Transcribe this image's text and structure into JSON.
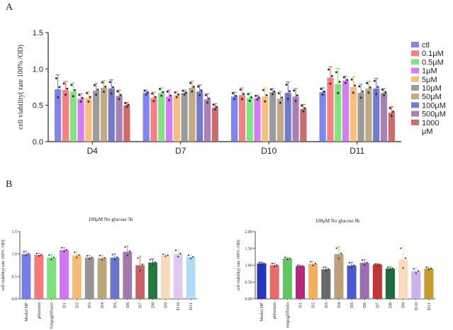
{
  "chart_data": [
    {
      "panel": "A",
      "type": "bar",
      "title": "",
      "ylabel": "cell viability( rate 100% /OD)",
      "xlabel": "",
      "ylim": [
        0,
        1.5
      ],
      "yticks": [
        "0.0",
        "0.5",
        "1.0",
        "1.5"
      ],
      "categories": [
        "D4",
        "D7",
        "D10",
        "D11"
      ],
      "series": [
        {
          "name": "ctl",
          "color": "#6a6fe8",
          "values": [
            0.72,
            0.67,
            0.62,
            0.68
          ],
          "errors": [
            0.2,
            0.04,
            0.06,
            0.06
          ]
        },
        {
          "name": "0.1μM",
          "color": "#f26b6b",
          "values": [
            0.71,
            0.6,
            0.64,
            0.88
          ],
          "errors": [
            0.12,
            0.08,
            0.1,
            0.15
          ]
        },
        {
          "name": "0.5μM",
          "color": "#6fdc6f",
          "values": [
            0.69,
            0.67,
            0.6,
            0.79
          ],
          "errors": [
            0.12,
            0.07,
            0.07,
            0.22
          ]
        },
        {
          "name": "1μM",
          "color": "#cc66ee",
          "values": [
            0.59,
            0.62,
            0.6,
            0.84
          ],
          "errors": [
            0.07,
            0.09,
            0.04,
            0.06
          ]
        },
        {
          "name": "5μM",
          "color": "#f7b36a",
          "values": [
            0.6,
            0.64,
            0.62,
            0.75
          ],
          "errors": [
            0.09,
            0.05,
            0.12,
            0.14
          ]
        },
        {
          "name": "10μM",
          "color": "#8a8a8a",
          "values": [
            0.7,
            0.67,
            0.68,
            0.67
          ],
          "errors": [
            0.1,
            0.04,
            0.05,
            0.12
          ]
        },
        {
          "name": "50μM",
          "color": "#b59b6e",
          "values": [
            0.74,
            0.74,
            0.59,
            0.73
          ],
          "errors": [
            0.1,
            0.09,
            0.1,
            0.1
          ]
        },
        {
          "name": "100μM",
          "color": "#5c64c4",
          "values": [
            0.73,
            0.69,
            0.67,
            0.73
          ],
          "errors": [
            0.12,
            0.09,
            0.15,
            0.14
          ]
        },
        {
          "name": "500μM",
          "color": "#9a6aa6",
          "values": [
            0.63,
            0.58,
            0.62,
            0.67
          ],
          "errors": [
            0.08,
            0.08,
            0.11,
            0.06
          ]
        },
        {
          "name": "1000μM",
          "color": "#c45252",
          "values": [
            0.5,
            0.47,
            0.45,
            0.4
          ],
          "errors": [
            0.04,
            0.05,
            0.06,
            0.08
          ]
        }
      ]
    },
    {
      "panel": "B-left",
      "type": "bar",
      "title": "100μM No glucose 3h",
      "ylabel": "cell viability( rate 100% /OD)",
      "xlabel": "",
      "ylim": [
        0,
        1.5
      ],
      "yticks": [
        "0.0",
        "0.5",
        "1.0",
        "1.5"
      ],
      "categories": [
        "Model HF",
        "phlorizin",
        "Empagliflozin",
        "D1",
        "D2",
        "D3",
        "D4",
        "D5",
        "D6",
        "D7",
        "D8",
        "D9",
        "D10",
        "D11"
      ],
      "values": [
        1.0,
        0.98,
        0.92,
        1.09,
        0.97,
        0.92,
        0.91,
        0.92,
        1.05,
        0.75,
        0.81,
        0.97,
        1.0,
        0.93
      ],
      "errors": [
        0.06,
        0.04,
        0.07,
        0.06,
        0.08,
        0.05,
        0.07,
        0.08,
        0.13,
        0.2,
        0.08,
        0.03,
        0.1,
        0.05
      ],
      "colors": [
        "#6a6fe8",
        "#f26b6b",
        "#6fdc6f",
        "#cc66ee",
        "#f7b36a",
        "#8a8a8a",
        "#b59b6e",
        "#5c64c4",
        "#9a6aa6",
        "#c45252",
        "#0a6b2a",
        "#f7d7b4",
        "#d9c4ec",
        "#a9d6f5"
      ]
    },
    {
      "panel": "B-right",
      "type": "bar",
      "title": "100μM No glucose 8h",
      "ylabel": "cell viability( rate 100% /OD)",
      "xlabel": "",
      "ylim": [
        0,
        2.0
      ],
      "yticks": [
        "0.00",
        "0.50",
        "1.00",
        "1.50",
        "2.00"
      ],
      "categories": [
        "Model HF",
        "phlorizin",
        "empagliflozin",
        "D1",
        "D2",
        "D3",
        "D4",
        "D5",
        "D6",
        "D7",
        "D8",
        "D9",
        "D10",
        "D11"
      ],
      "values": [
        1.05,
        1.0,
        1.2,
        0.97,
        1.04,
        0.88,
        1.33,
        0.99,
        1.07,
        1.02,
        0.9,
        1.17,
        0.82,
        0.9
      ],
      "errors": [
        0.04,
        0.06,
        0.04,
        0.03,
        0.08,
        0.07,
        0.22,
        0.1,
        0.1,
        0.02,
        0.05,
        0.42,
        0.09,
        0.05
      ],
      "colors": [
        "#1020b0",
        "#e55a5a",
        "#4cc24c",
        "#b0106a",
        "#f2a64a",
        "#5a5a5a",
        "#b8956a",
        "#3848c8",
        "#9060a8",
        "#b82020",
        "#0a5a2a",
        "#f8d8b8",
        "#c8a8e8",
        "#c0901a"
      ]
    }
  ],
  "panels": {
    "a_label": "A",
    "b_label": "B"
  }
}
